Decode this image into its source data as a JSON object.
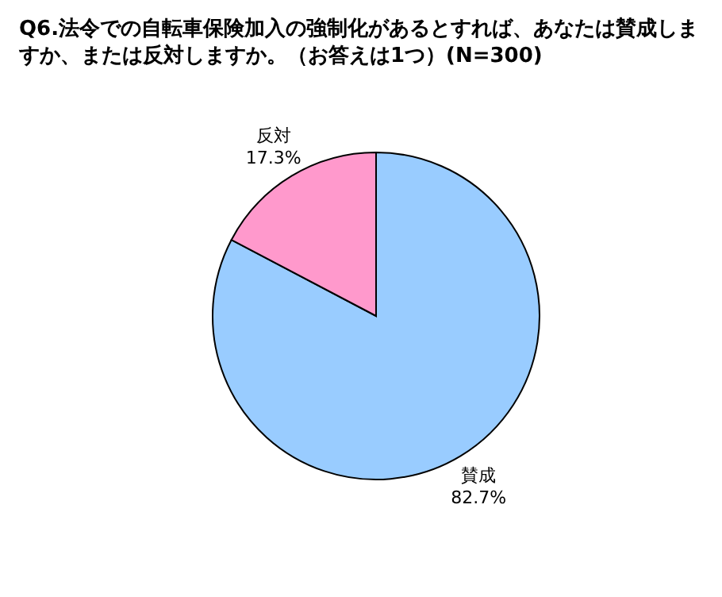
{
  "chart_data": {
    "type": "pie",
    "title": "Q6.法令での自転車保険加入の強制化があるとすれば、あなたは賛成しますか、または反対しますか。（お答えは1つ）(N=300)",
    "categories": [
      "賛成",
      "反対"
    ],
    "values": [
      82.7,
      17.3
    ],
    "value_labels": [
      "82.7%",
      "17.3%"
    ],
    "colors": [
      "#99ccff",
      "#ff99cc"
    ],
    "legend": false
  }
}
